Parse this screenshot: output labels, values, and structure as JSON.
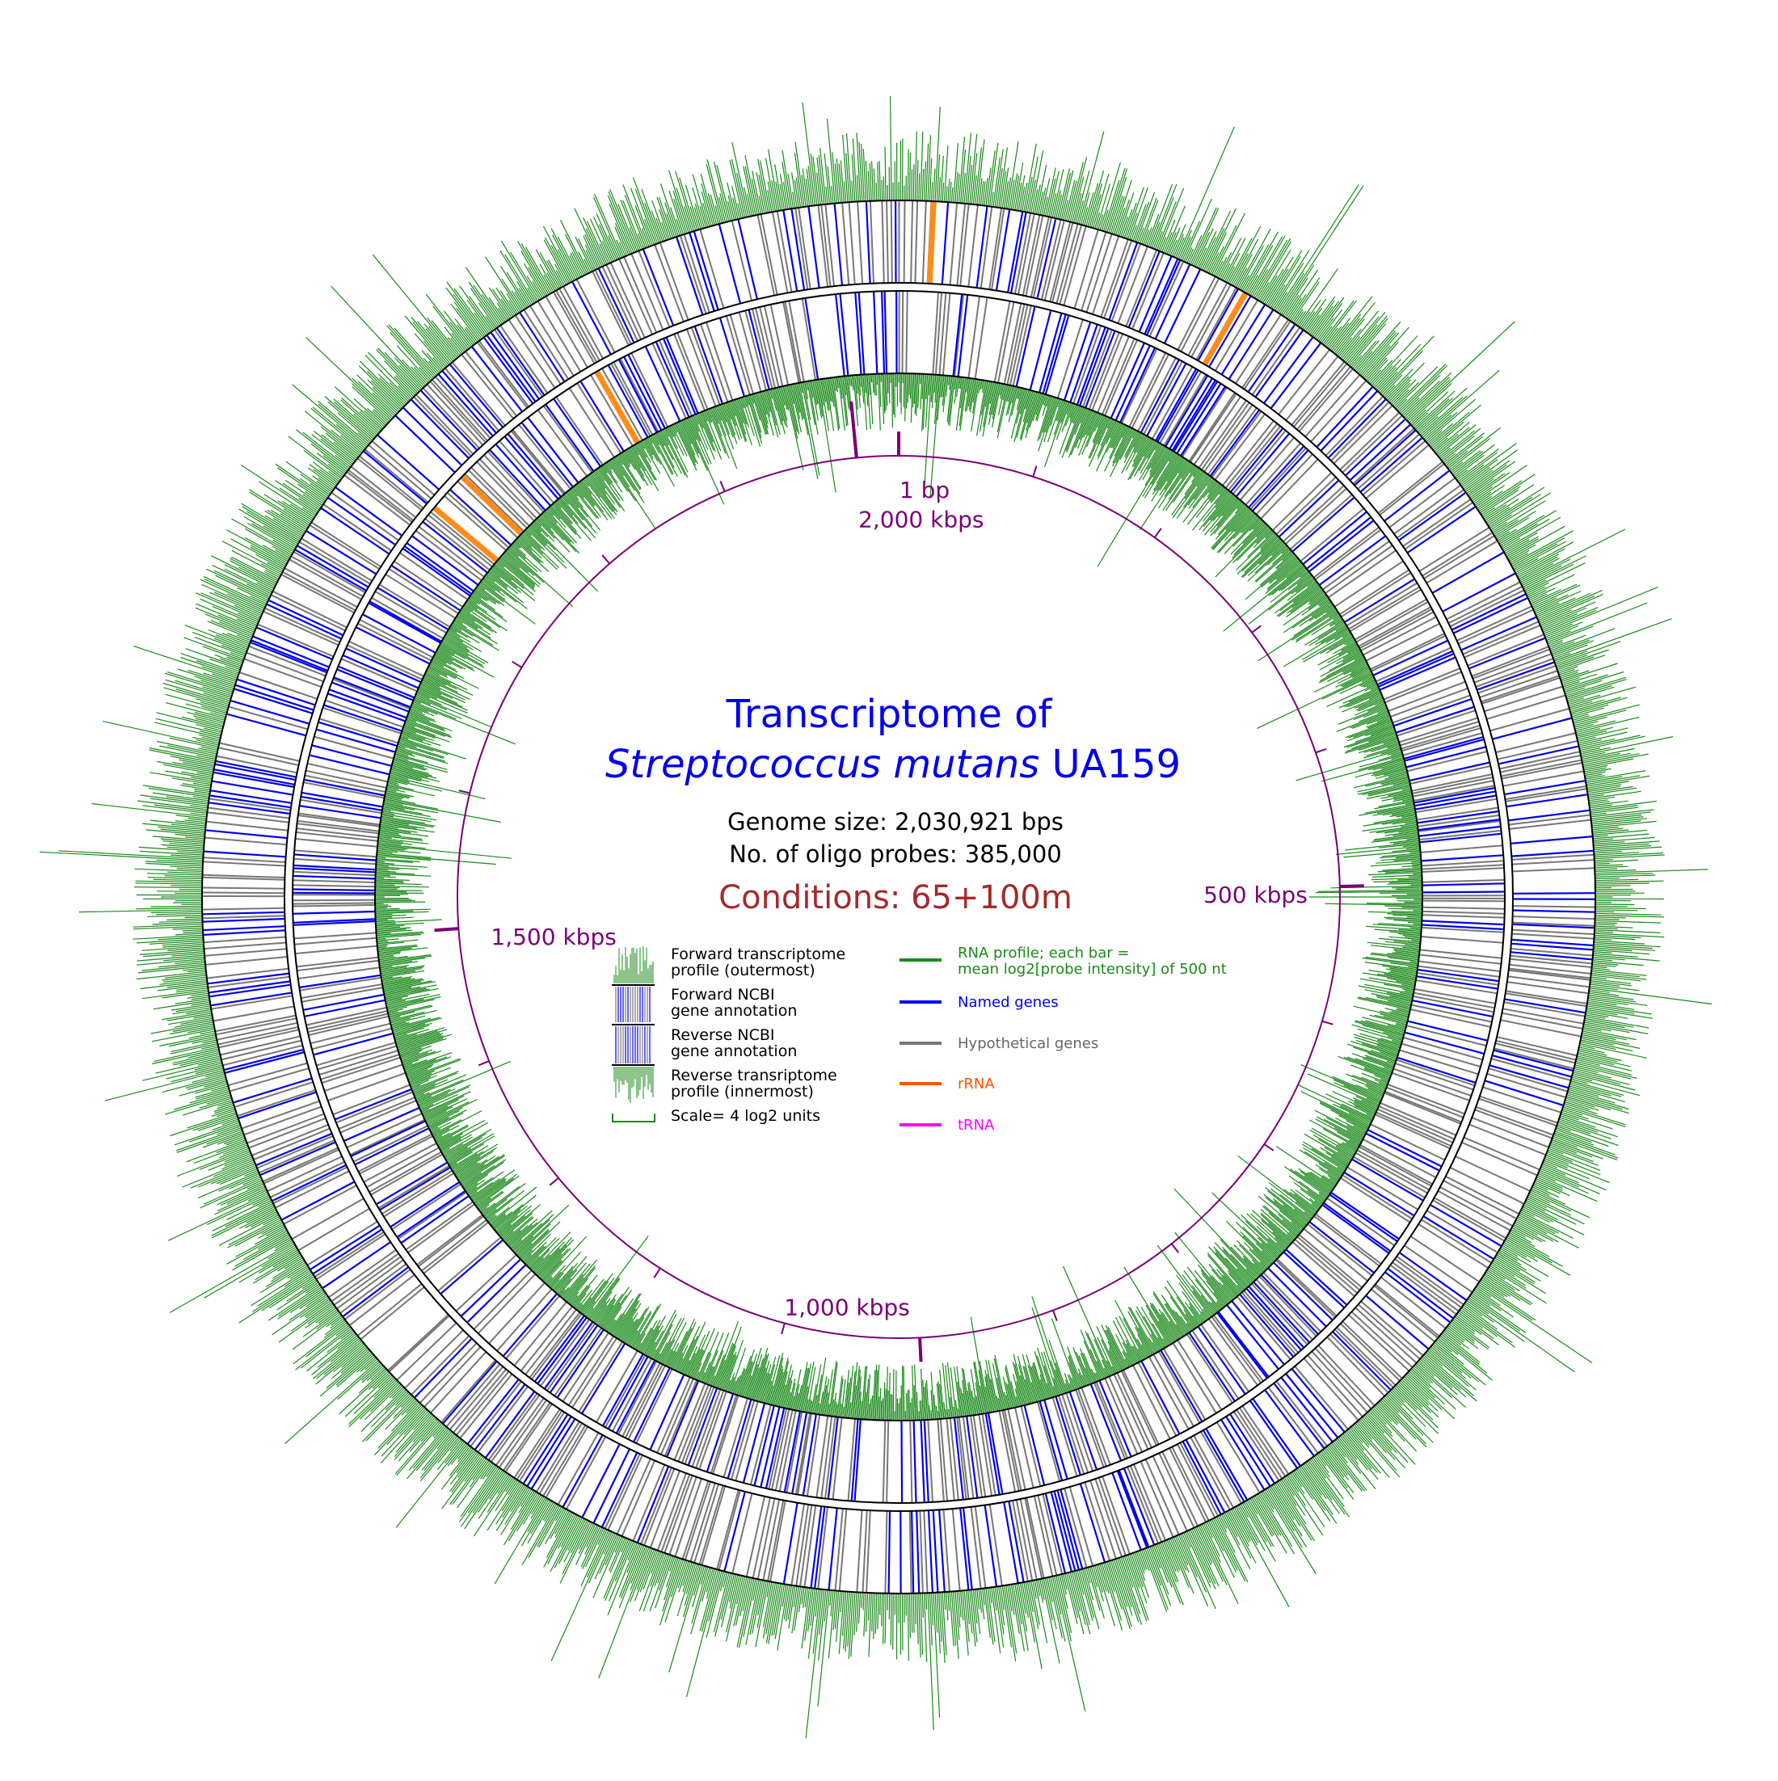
{
  "title": {
    "line1": "Transcriptome of",
    "species": "Streptococcus mutans",
    "strain": " UA159"
  },
  "genome_size": "Genome size: 2,030,921 bps",
  "probe_count": "No. of oligo probes: 385,000",
  "conditions": "Conditions: 65+100m",
  "axis": {
    "tick_labels": [
      {
        "text": "1 bp",
        "value_bp": 1
      },
      {
        "text": "500 kbps",
        "value_bp": 500000
      },
      {
        "text": "1,000 kbps",
        "value_bp": 1000000
      },
      {
        "text": "1,500 kbps",
        "value_bp": 1500000
      },
      {
        "text": "2,000 kbps",
        "value_bp": 2000000
      }
    ],
    "genome_length_bp": 2030921
  },
  "track_legend": [
    "Forward transcriptome\nprofile (outermost)",
    "Forward NCBI\ngene annotation",
    "Reverse NCBI\ngene annotation",
    "Reverse transriptome\nprofile (innermost)",
    "Scale= 4 log2 units"
  ],
  "color_legend": [
    {
      "label": "RNA profile; each bar =\nmean log2[probe intensity] of 500 nt",
      "color": "#1a8a1a"
    },
    {
      "label": "Named genes",
      "color": "#0000ee"
    },
    {
      "label": "Hypothetical genes",
      "color": "#777777"
    },
    {
      "label": "rRNA",
      "color": "#ff5500"
    },
    {
      "label": "tRNA",
      "color": "#ff00ff"
    }
  ],
  "colors": {
    "title": "#0000ee",
    "conditions": "#a52a2a",
    "axis": "#7a0077",
    "profile": "#1a8a1a",
    "named": "#0000ee",
    "hypothetical": "#777777",
    "rrna": "#ff8c1a",
    "trna": "#ff00ff"
  }
}
